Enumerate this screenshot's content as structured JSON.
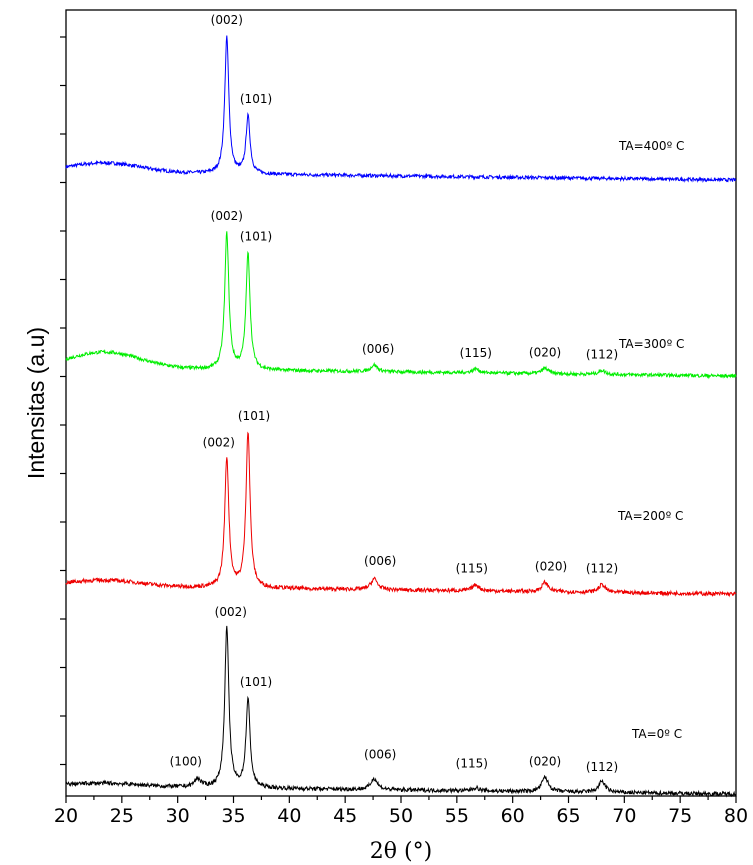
{
  "chart_data": {
    "type": "line",
    "title": "",
    "xlabel": "2θ (°)",
    "ylabel": "Intensitas (a.u)",
    "xlim": [
      20,
      80
    ],
    "x_ticks": [
      "20",
      "25",
      "30",
      "35",
      "40",
      "45",
      "50",
      "55",
      "60",
      "65",
      "70",
      "75",
      "80"
    ],
    "y_ticks_labeled": false,
    "grid": false,
    "series": [
      {
        "name": "TA=400º C",
        "color": "#0000ff",
        "peaks": [
          {
            "label": "(002)",
            "x": 34.4,
            "rel_height": 1.0
          },
          {
            "label": "(101)",
            "x": 36.3,
            "rel_height": 0.42
          }
        ],
        "minor_peaks": [],
        "amorphous_hump": {
          "center": 23.5,
          "rel_height": 0.07
        }
      },
      {
        "name": "TA=300º C",
        "color": "#00ee00",
        "peaks": [
          {
            "label": "(002)",
            "x": 34.4,
            "rel_height": 1.0
          },
          {
            "label": "(101)",
            "x": 36.3,
            "rel_height": 0.85
          },
          {
            "label": "(006)",
            "x": 47.6,
            "rel_height": 0.05
          },
          {
            "label": "(115)",
            "x": 56.7,
            "rel_height": 0.03
          },
          {
            "label": "(020)",
            "x": 62.9,
            "rel_height": 0.04
          },
          {
            "label": "(112)",
            "x": 68.0,
            "rel_height": 0.03
          }
        ],
        "amorphous_hump": {
          "center": 23.5,
          "rel_height": 0.12
        }
      },
      {
        "name": "TA=200º C",
        "color": "#ee0000",
        "peaks": [
          {
            "label": "(002)",
            "x": 34.4,
            "rel_height": 0.83
          },
          {
            "label": "(101)",
            "x": 36.3,
            "rel_height": 1.0
          },
          {
            "label": "(006)",
            "x": 47.6,
            "rel_height": 0.07
          },
          {
            "label": "(115)",
            "x": 56.7,
            "rel_height": 0.04
          },
          {
            "label": "(020)",
            "x": 62.9,
            "rel_height": 0.06
          },
          {
            "label": "(112)",
            "x": 68.0,
            "rel_height": 0.05
          }
        ],
        "amorphous_hump": {
          "center": 23.5,
          "rel_height": 0.04
        }
      },
      {
        "name": "TA=0º C",
        "color": "#000000",
        "peaks": [
          {
            "label": "(100)",
            "x": 31.8,
            "rel_height": 0.05
          },
          {
            "label": "(002)",
            "x": 34.4,
            "rel_height": 1.0
          },
          {
            "label": "(101)",
            "x": 36.3,
            "rel_height": 0.55
          },
          {
            "label": "(006)",
            "x": 47.6,
            "rel_height": 0.07
          },
          {
            "label": "(115)",
            "x": 56.7,
            "rel_height": 0.02
          },
          {
            "label": "(020)",
            "x": 62.9,
            "rel_height": 0.09
          },
          {
            "label": "(112)",
            "x": 68.0,
            "rel_height": 0.07
          }
        ],
        "amorphous_hump": {
          "center": 23.5,
          "rel_height": 0.02
        }
      }
    ]
  }
}
